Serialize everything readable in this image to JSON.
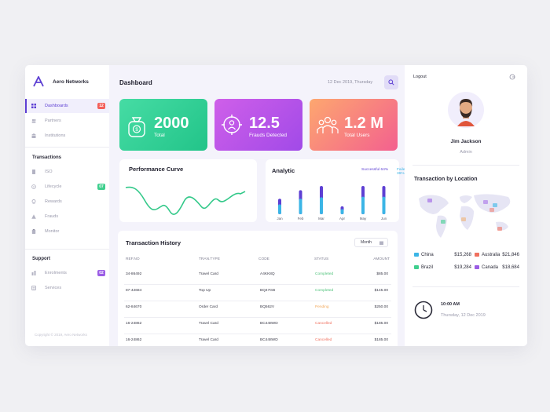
{
  "brand": {
    "name": "Aero Networks"
  },
  "sidebar": {
    "items": [
      {
        "label": "Dashboards",
        "badge": "12",
        "badge_color": "#f3605a"
      },
      {
        "label": "Partners"
      },
      {
        "label": "Institutions"
      }
    ],
    "transactions_title": "Transactions",
    "transactions": [
      {
        "label": "ISO"
      },
      {
        "label": "Lifecycle",
        "badge": "07",
        "badge_color": "#3fcf8e"
      },
      {
        "label": "Rewards"
      },
      {
        "label": "Frauds"
      },
      {
        "label": "Monitor"
      }
    ],
    "support_title": "Support",
    "support": [
      {
        "label": "Enrolments",
        "badge": "02",
        "badge_color": "#9b5de5"
      },
      {
        "label": "Services"
      }
    ],
    "copyright": "Copyright © 2019, Aero Networks"
  },
  "header": {
    "title": "Dashboard",
    "date": "12 Dec 2019, Thursday"
  },
  "stats": [
    {
      "value": "2000",
      "label": "Total",
      "gradient": [
        "#3ed4a0",
        "#27c98c"
      ]
    },
    {
      "value": "12.5",
      "label": "Frauds Detected",
      "gradient": [
        "#c45be8",
        "#a44de6"
      ]
    },
    {
      "value": "1.2 M",
      "label": "Total Users",
      "gradient": [
        "#fea37a",
        "#f1609a"
      ]
    }
  ],
  "performance": {
    "title": "Performance Curve"
  },
  "analytic": {
    "title": "Analytic",
    "successful_label": "Successful",
    "successful_value": "64%",
    "failed_label": "Failed",
    "failed_value": "36%",
    "colors": {
      "successful": "#5d3fd3",
      "failed": "#3bb5e6"
    }
  },
  "chart_data": {
    "type": "bar",
    "categories": [
      "Jan",
      "Feb",
      "Mar",
      "Apr",
      "May",
      "Jun"
    ],
    "series": [
      {
        "name": "Successful",
        "values": [
          0.55,
          0.85,
          1.0,
          0.28,
          1.0,
          1.0
        ]
      },
      {
        "name": "Failed",
        "values": [
          0.35,
          0.55,
          0.6,
          0.18,
          0.62,
          0.62
        ]
      }
    ],
    "title": "Analytic"
  },
  "transactions": {
    "title": "Transaction History",
    "filter": "Month",
    "columns": [
      "REF.NO",
      "TRAN.TYPE",
      "CODE",
      "STATUS",
      "AMOUNT"
    ],
    "rows": [
      {
        "ref": "34-86492",
        "type": "Travel Card",
        "code": "A4KK8Q",
        "status": "Completed",
        "amount": "$85.00"
      },
      {
        "ref": "87-42684",
        "type": "Top Up",
        "code": "BQ47GB",
        "status": "Completed",
        "amount": "$145.00"
      },
      {
        "ref": "62-84670",
        "type": "Order Card",
        "code": "BQ562V",
        "status": "Pending",
        "amount": "$250.00"
      },
      {
        "ref": "16-24862",
        "type": "Travel Card",
        "code": "BC448WD",
        "status": "Cancelled",
        "amount": "$185.00"
      },
      {
        "ref": "16-24862",
        "type": "Travel Card",
        "code": "BC448WD",
        "status": "Cancelled",
        "amount": "$185.00"
      },
      {
        "ref": "16-24862",
        "type": "Travel Card",
        "code": "BC448WD",
        "status": "Cancelled",
        "amount": "$185.00"
      }
    ]
  },
  "profile": {
    "logout": "Logout",
    "name": "Jim Jackson",
    "role": "Admin"
  },
  "location": {
    "title": "Transaction by Location",
    "rows": [
      {
        "country": "China",
        "amount": "$15,268",
        "flag": "#3bb5e6"
      },
      {
        "country": "Australia",
        "amount": "$21,846",
        "flag": "#f0705e"
      },
      {
        "country": "Brazil",
        "amount": "$19,284",
        "flag": "#3fcf8e"
      },
      {
        "country": "Canada",
        "amount": "$18,684",
        "flag": "#9b5de5"
      }
    ]
  },
  "clock": {
    "time": "10:00 AM",
    "date": "Thursday, 12 Dec 2019"
  }
}
